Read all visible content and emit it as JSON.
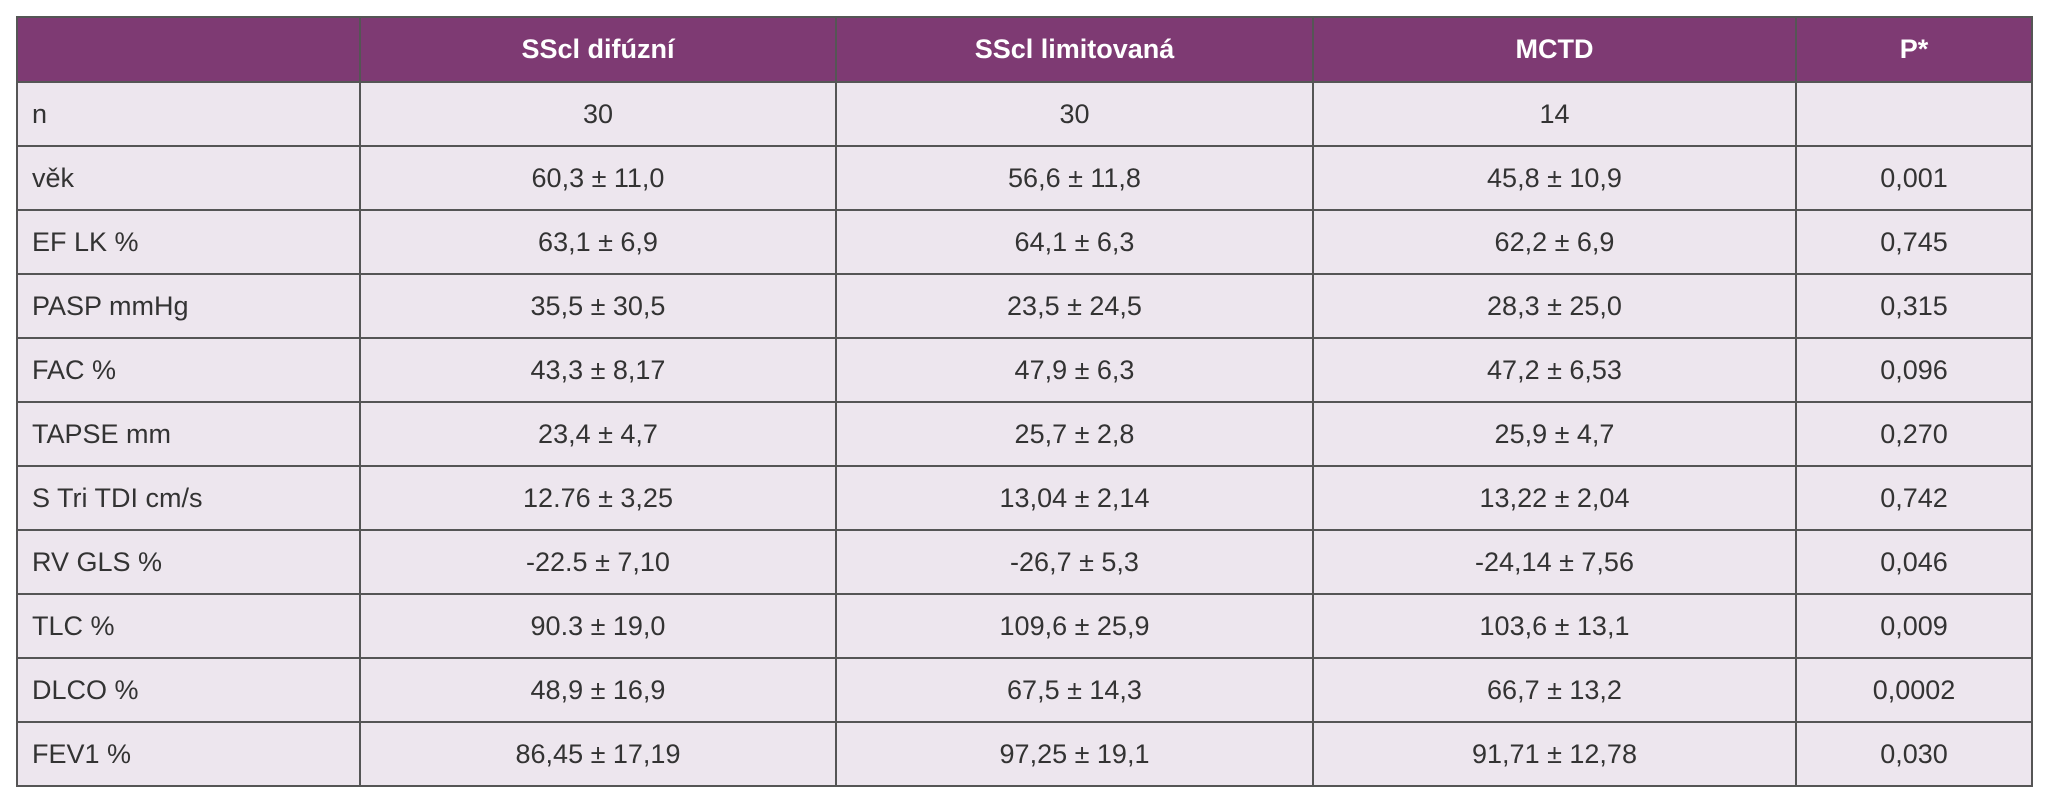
{
  "table": {
    "headers": [
      "SScl difúzní",
      "SScl limitovaná",
      "MCTD",
      "P*"
    ],
    "rows": [
      [
        "n",
        "30",
        "30",
        "14",
        null
      ],
      [
        "věk",
        "60,3 ± 11,0",
        "56,6 ± 11,8",
        "45,8 ± 10,9",
        "0,001"
      ],
      [
        "EF LK %",
        "63,1 ± 6,9",
        "64,1 ± 6,3",
        "62,2 ± 6,9",
        "0,745"
      ],
      [
        "PASP mmHg",
        "35,5 ± 30,5",
        "23,5 ± 24,5",
        "28,3 ± 25,0",
        "0,315"
      ],
      [
        "FAC %",
        "43,3 ± 8,17",
        "47,9 ± 6,3",
        "47,2 ± 6,53",
        "0,096"
      ],
      [
        "TAPSE mm",
        "23,4 ± 4,7",
        "25,7 ± 2,8",
        "25,9 ± 4,7",
        "0,270"
      ],
      [
        "S Tri TDI cm/s",
        "12.76 ± 3,25",
        "13,04 ± 2,14",
        "13,22 ± 2,04",
        "0,742"
      ],
      [
        "RV GLS %",
        "-22.5 ± 7,10",
        "-26,7 ± 5,3",
        "-24,14 ± 7,56",
        "0,046"
      ],
      [
        "TLC %",
        "90.3 ± 19,0",
        "109,6 ± 25,9",
        "103,6 ± 13,1",
        "0,009"
      ],
      [
        "DLCO %",
        "48,9 ± 16,9",
        "67,5 ± 14,3",
        "66,7 ± 13,2",
        "0,0002"
      ],
      [
        "FEV1 %",
        "86,45 ± 17,19",
        "97,25 ± 19,1",
        "91,71 ± 12,78",
        "0,030"
      ]
    ]
  }
}
